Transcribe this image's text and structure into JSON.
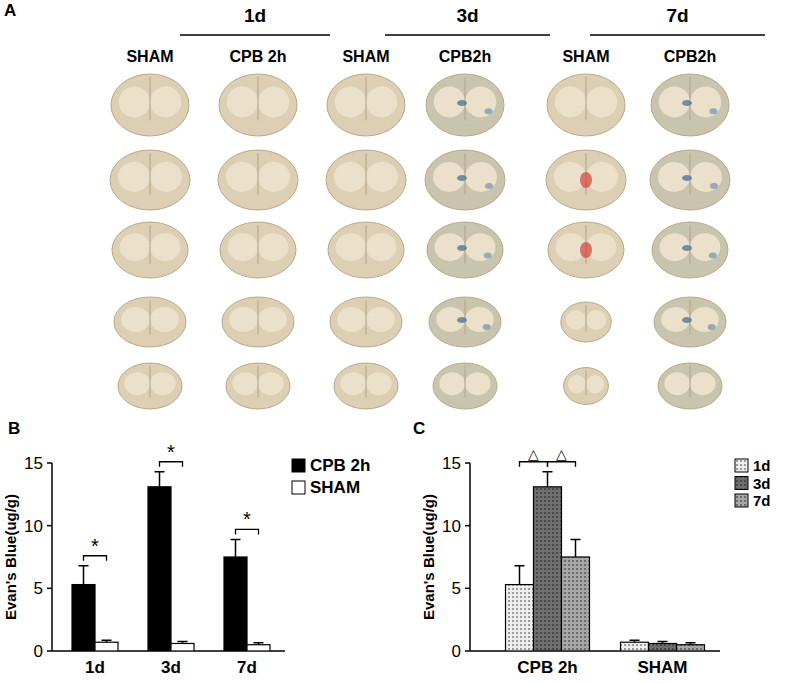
{
  "panel_a": {
    "label": "A",
    "groups": [
      {
        "label": "1d",
        "columns": [
          "SHAM",
          "CPB 2h"
        ]
      },
      {
        "label": "3d",
        "columns": [
          "SHAM",
          "CPB2h"
        ]
      },
      {
        "label": "7d",
        "columns": [
          "SHAM",
          "CPB2h"
        ]
      }
    ]
  },
  "chart_data": [
    {
      "type": "bar",
      "panel_label": "B",
      "y_label": "Evan's Blue(ug/g)",
      "categories": [
        "1d",
        "3d",
        "7d"
      ],
      "series": [
        {
          "name": "CPB 2h",
          "color": "#000000",
          "values": [
            5.3,
            13.1,
            7.5
          ],
          "errors": [
            1.5,
            1.2,
            1.4
          ]
        },
        {
          "name": "SHAM",
          "color": "#ffffff",
          "values": [
            0.7,
            0.6,
            0.5
          ],
          "errors": [
            0.15,
            0.15,
            0.15
          ]
        }
      ],
      "ylim": [
        0,
        15
      ],
      "yticks": [
        0,
        5,
        10,
        15
      ],
      "grid": false,
      "legend": "right",
      "annotations": [
        {
          "text": "*",
          "category": "1d",
          "between": [
            "CPB 2h",
            "SHAM"
          ]
        },
        {
          "text": "*",
          "category": "3d",
          "between": [
            "CPB 2h",
            "SHAM"
          ]
        },
        {
          "text": "*",
          "category": "7d",
          "between": [
            "CPB 2h",
            "SHAM"
          ]
        }
      ]
    },
    {
      "type": "bar",
      "panel_label": "C",
      "y_label": "Evan's Blue(ug/g)",
      "categories": [
        "CPB 2h",
        "SHAM"
      ],
      "series": [
        {
          "name": "1d",
          "color": "#eeeeee",
          "values": [
            5.3,
            0.7
          ],
          "errors": [
            1.5,
            0.15
          ]
        },
        {
          "name": "3d",
          "color": "#6e6e6e",
          "values": [
            13.1,
            0.6
          ],
          "errors": [
            1.2,
            0.15
          ]
        },
        {
          "name": "7d",
          "color": "#a8a8a8",
          "values": [
            7.5,
            0.5
          ],
          "errors": [
            1.4,
            0.15
          ]
        }
      ],
      "ylim": [
        0,
        15
      ],
      "yticks": [
        0,
        5,
        10,
        15
      ],
      "grid": false,
      "legend": "right",
      "annotations": [
        {
          "text": "△",
          "category": "CPB 2h",
          "between": [
            "1d",
            "3d"
          ]
        },
        {
          "text": "△",
          "category": "CPB 2h",
          "between": [
            "3d",
            "7d"
          ]
        }
      ]
    }
  ]
}
